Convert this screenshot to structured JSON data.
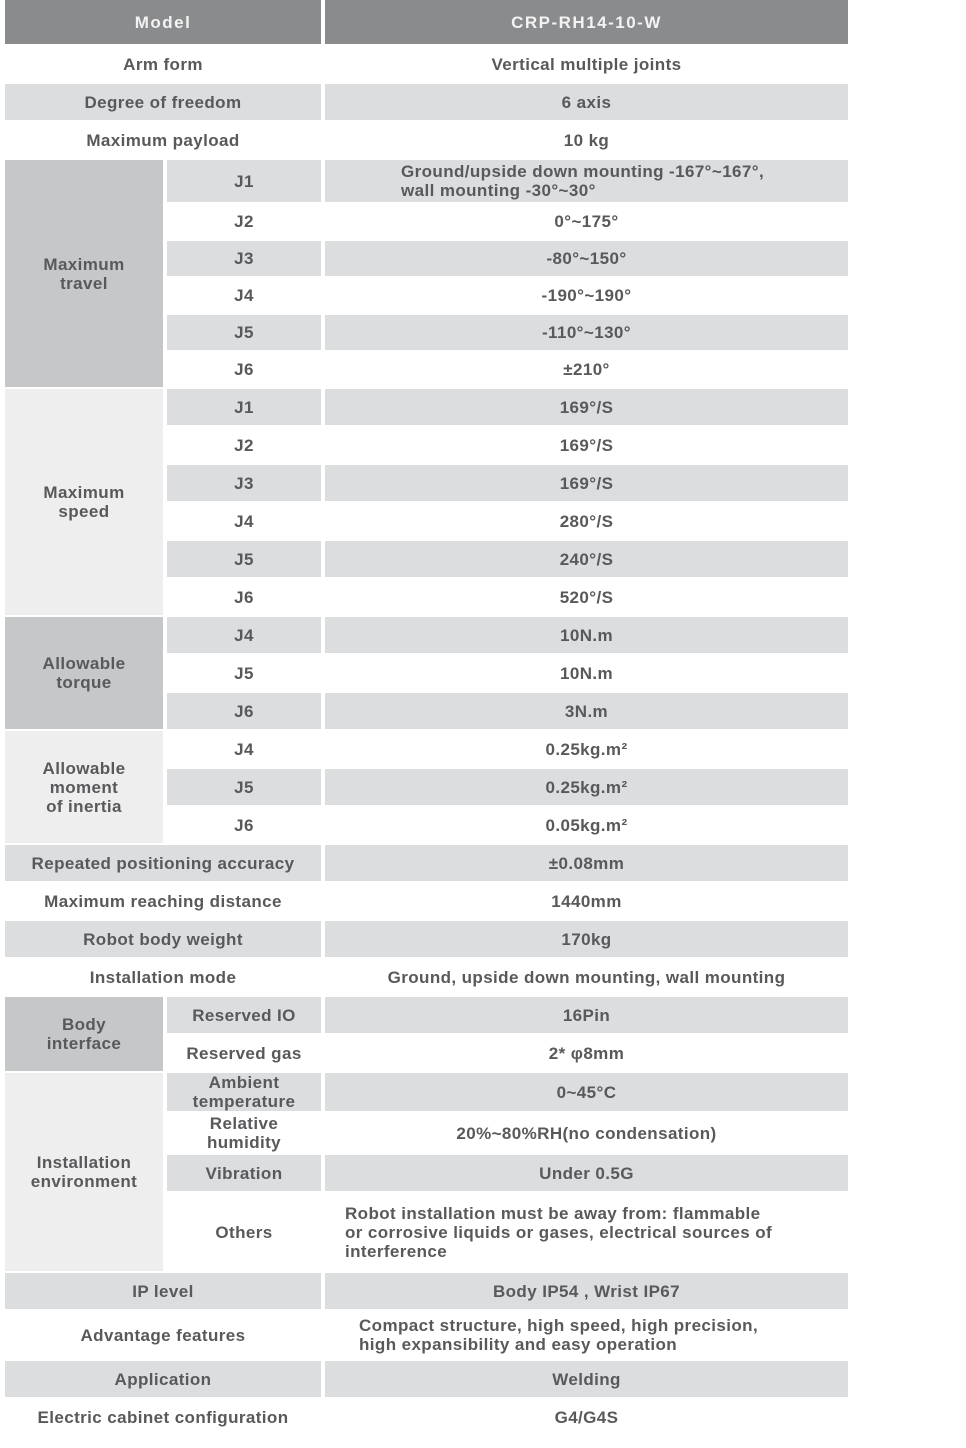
{
  "palette": {
    "header_bg": "#8a8b8d",
    "header_text": "#f3f3f3",
    "row_gray": "#dcddde",
    "group_medium_gray": "#c6c7c9",
    "group_light_gray": "#eeeeef",
    "text": "#58595b"
  },
  "header": {
    "label": "Model",
    "value": "CRP-RH14-10-W"
  },
  "top_rows": [
    {
      "label": "Arm form",
      "value": "Vertical multiple joints"
    },
    {
      "label": "Degree of freedom",
      "value": "6 axis"
    },
    {
      "label": "Maximum payload",
      "value": "10 kg"
    }
  ],
  "maximum_travel": {
    "label": "Maximum\ntravel",
    "rows": [
      {
        "joint": "J1",
        "value": "Ground/upside down mounting -167°~167°,\nwall mounting -30°~30°"
      },
      {
        "joint": "J2",
        "value": "0°~175°"
      },
      {
        "joint": "J3",
        "value": "-80°~150°"
      },
      {
        "joint": "J4",
        "value": "-190°~190°"
      },
      {
        "joint": "J5",
        "value": "-110°~130°"
      },
      {
        "joint": "J6",
        "value": "±210°"
      }
    ]
  },
  "maximum_speed": {
    "label": "Maximum\nspeed",
    "rows": [
      {
        "joint": "J1",
        "value": "169°/S"
      },
      {
        "joint": "J2",
        "value": "169°/S"
      },
      {
        "joint": "J3",
        "value": "169°/S"
      },
      {
        "joint": "J4",
        "value": "280°/S"
      },
      {
        "joint": "J5",
        "value": "240°/S"
      },
      {
        "joint": "J6",
        "value": "520°/S"
      }
    ]
  },
  "allowable_torque": {
    "label": "Allowable\ntorque",
    "rows": [
      {
        "joint": "J4",
        "value": "10N.m"
      },
      {
        "joint": "J5",
        "value": "10N.m"
      },
      {
        "joint": "J6",
        "value": "3N.m"
      }
    ]
  },
  "allowable_inertia": {
    "label": "Allowable\nmoment\nof inertia",
    "rows": [
      {
        "joint": "J4",
        "value": "0.25kg.m²"
      },
      {
        "joint": "J5",
        "value": "0.25kg.m²"
      },
      {
        "joint": "J6",
        "value": "0.05kg.m²"
      }
    ]
  },
  "mid_rows": [
    {
      "label": "Repeated positioning accuracy",
      "value": "±0.08mm"
    },
    {
      "label": "Maximum reaching distance",
      "value": "1440mm"
    },
    {
      "label": "Robot body weight",
      "value": "170kg"
    },
    {
      "label": "Installation mode",
      "value": "Ground, upside down mounting, wall mounting"
    }
  ],
  "body_interface": {
    "label": "Body\ninterface",
    "rows": [
      {
        "name": "Reserved IO",
        "value": "16Pin"
      },
      {
        "name": "Reserved gas",
        "value": "2* φ8mm"
      }
    ]
  },
  "installation_environment": {
    "label": "Installation\nenvironment",
    "rows": [
      {
        "name": "Ambient\ntemperature",
        "value": "0~45°C"
      },
      {
        "name": "Relative\nhumidity",
        "value": "20%~80%RH(no condensation)"
      },
      {
        "name": "Vibration",
        "value": "Under 0.5G"
      },
      {
        "name": "Others",
        "value": "Robot installation must be away from: flammable\nor corrosive liquids or gases, electrical sources of\ninterference"
      }
    ]
  },
  "bottom_rows": [
    {
      "label": "IP level",
      "value": "Body IP54 , Wrist IP67"
    },
    {
      "label": "Advantage features",
      "value": "Compact structure, high speed, high precision,\nhigh expansibility and easy operation"
    },
    {
      "label": "Application",
      "value": "Welding"
    },
    {
      "label": "Electric cabinet configuration",
      "value": "G4/G4S"
    }
  ]
}
